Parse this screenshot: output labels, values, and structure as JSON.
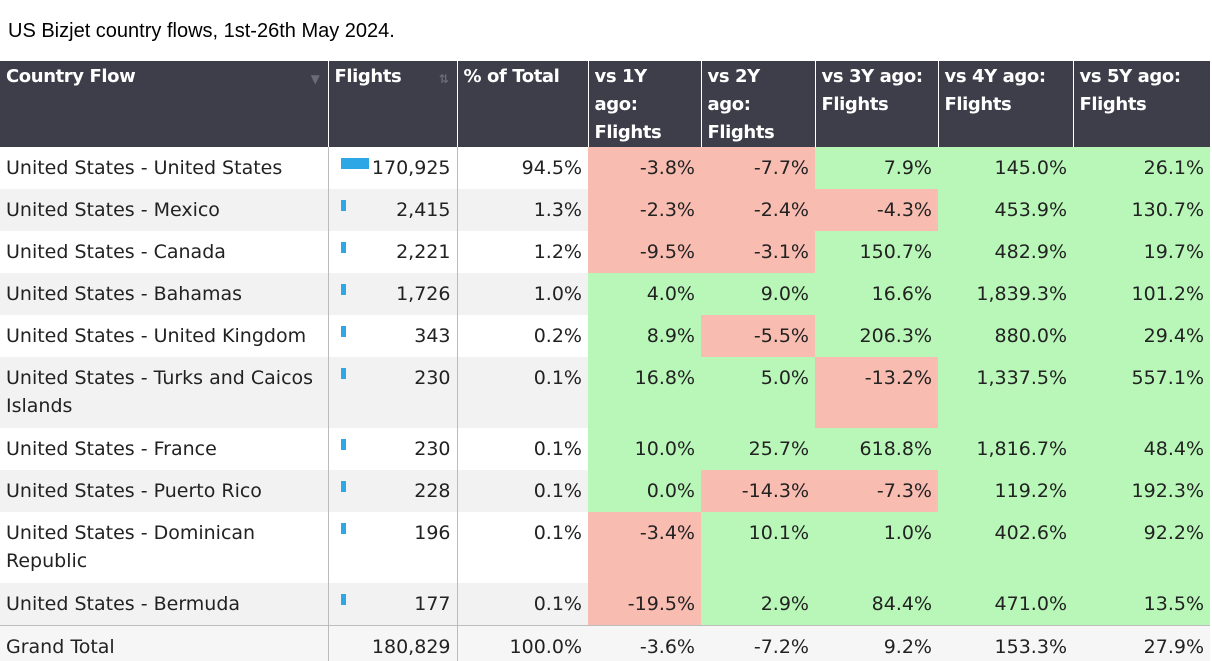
{
  "title": "US Bizjet country flows, 1st-26th May 2024.",
  "headers": {
    "country": "Country Flow",
    "flights": "Flights",
    "pct": "% of Total",
    "y1": [
      "vs 1Y ago:",
      "Flights"
    ],
    "y2": [
      "vs 2Y ago:",
      "Flights"
    ],
    "y3": [
      "vs 3Y ago:",
      "Flights"
    ],
    "y4": [
      "vs 4Y ago:",
      "Flights"
    ],
    "y5": [
      "vs 5Y ago:",
      "Flights"
    ]
  },
  "colors": {
    "negative": "#f8bcb1",
    "positive": "#b9f7b9",
    "bar": "#2ea7e6",
    "header": "#3e3d4a"
  },
  "rows": [
    {
      "country": "United States - United States",
      "flights": "170,925",
      "bar_fraction": 1.0,
      "pct": "94.5%",
      "y1": "-3.8%",
      "y2": "-7.7%",
      "y3": "7.9%",
      "y4": "145.0%",
      "y5": "26.1%"
    },
    {
      "country": "United States - Mexico",
      "flights": "2,415",
      "bar_fraction": 0.014,
      "pct": "1.3%",
      "y1": "-2.3%",
      "y2": "-2.4%",
      "y3": "-4.3%",
      "y4": "453.9%",
      "y5": "130.7%"
    },
    {
      "country": "United States - Canada",
      "flights": "2,221",
      "bar_fraction": 0.013,
      "pct": "1.2%",
      "y1": "-9.5%",
      "y2": "-3.1%",
      "y3": "150.7%",
      "y4": "482.9%",
      "y5": "19.7%"
    },
    {
      "country": "United States - Bahamas",
      "flights": "1,726",
      "bar_fraction": 0.01,
      "pct": "1.0%",
      "y1": "4.0%",
      "y2": "9.0%",
      "y3": "16.6%",
      "y4": "1,839.3%",
      "y5": "101.2%"
    },
    {
      "country": "United States - United Kingdom",
      "flights": "343",
      "bar_fraction": 0.002,
      "pct": "0.2%",
      "y1": "8.9%",
      "y2": "-5.5%",
      "y3": "206.3%",
      "y4": "880.0%",
      "y5": "29.4%"
    },
    {
      "country": "United States - Turks and Caicos Islands",
      "flights": "230",
      "bar_fraction": 0.001,
      "pct": "0.1%",
      "y1": "16.8%",
      "y2": "5.0%",
      "y3": "-13.2%",
      "y4": "1,337.5%",
      "y5": "557.1%"
    },
    {
      "country": "United States - France",
      "flights": "230",
      "bar_fraction": 0.001,
      "pct": "0.1%",
      "y1": "10.0%",
      "y2": "25.7%",
      "y3": "618.8%",
      "y4": "1,816.7%",
      "y5": "48.4%"
    },
    {
      "country": "United States - Puerto Rico",
      "flights": "228",
      "bar_fraction": 0.001,
      "pct": "0.1%",
      "y1": "0.0%",
      "y2": "-14.3%",
      "y3": "-7.3%",
      "y4": "119.2%",
      "y5": "192.3%"
    },
    {
      "country": "United States - Dominican Republic",
      "flights": "196",
      "bar_fraction": 0.001,
      "pct": "0.1%",
      "y1": "-3.4%",
      "y2": "10.1%",
      "y3": "1.0%",
      "y4": "402.6%",
      "y5": "92.2%"
    },
    {
      "country": "United States - Bermuda",
      "flights": "177",
      "bar_fraction": 0.001,
      "pct": "0.1%",
      "y1": "-19.5%",
      "y2": "2.9%",
      "y3": "84.4%",
      "y4": "471.0%",
      "y5": "13.5%"
    }
  ],
  "total": {
    "country": "Grand Total",
    "flights": "180,829",
    "pct": "100.0%",
    "y1": "-3.6%",
    "y2": "-7.2%",
    "y3": "9.2%",
    "y4": "153.3%",
    "y5": "27.9%"
  }
}
